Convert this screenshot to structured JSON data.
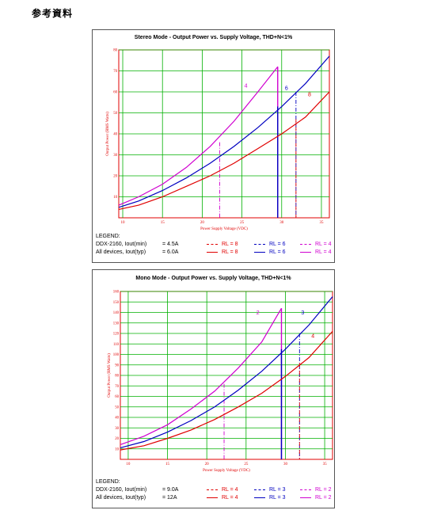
{
  "page": {
    "heading": "参考資料"
  },
  "charts": [
    {
      "title": "Stereo Mode - Output Power vs. Supply Voltage, THD+N<1%",
      "xlabel": "Power Supply Voltage (VDC)",
      "ylabel": "Output Power (RMS Watts)",
      "legend_title": "LEGEND:",
      "legend_rows": [
        {
          "label": "DDX-2160, Iout(min)",
          "value": "= 4.5A",
          "items": [
            "RL = 8",
            "RL = 6",
            "RL = 4"
          ]
        },
        {
          "label": "All devices, Iout(typ)",
          "value": "= 6.0A",
          "items": [
            "RL = 8",
            "RL = 6",
            "RL = 4"
          ]
        }
      ]
    },
    {
      "title": "Mono Mode - Output Power vs. Supply Voltage, THD+N<1%",
      "xlabel": "Power Supply Voltage (VDC)",
      "ylabel": "Output Power (RMS Watts)",
      "legend_title": "LEGEND:",
      "legend_rows": [
        {
          "label": "DDX-2160, Iout(min)",
          "value": "= 9.0A",
          "items": [
            "RL = 4",
            "RL = 3",
            "RL = 2"
          ]
        },
        {
          "label": "All devices, Iout(typ)",
          "value": "= 12A",
          "items": [
            "RL = 4",
            "RL = 3",
            "RL = 2"
          ]
        }
      ]
    }
  ],
  "chart_data": [
    {
      "type": "line",
      "title": "Stereo Mode - Output Power vs. Supply Voltage, THD+N<1%",
      "xlabel": "Power Supply Voltage (VDC)",
      "ylabel": "Output Power (RMS Watts)",
      "xlim": [
        9.5,
        36
      ],
      "ylim": [
        0,
        80
      ],
      "xticks": [
        10,
        15,
        20,
        25,
        30,
        35
      ],
      "yticks": [
        10,
        20,
        30,
        40,
        50,
        60,
        70,
        80
      ],
      "grid": true,
      "series": [
        {
          "name": "4",
          "color": "#d000d0",
          "x": [
            9.5,
            12,
            15,
            18,
            21,
            24,
            27,
            29.5
          ],
          "y": [
            6,
            10,
            16,
            24,
            34,
            46,
            60,
            72
          ]
        },
        {
          "name": "6",
          "color": "#0000c0",
          "x": [
            9.5,
            12,
            15,
            18,
            21,
            24,
            27,
            30,
            33,
            36
          ],
          "y": [
            5,
            8,
            13,
            19,
            26,
            34,
            43,
            53,
            64,
            77
          ]
        },
        {
          "name": "8",
          "color": "#e00000",
          "x": [
            9.5,
            12,
            15,
            18,
            21,
            24,
            27,
            30,
            33,
            36
          ],
          "y": [
            4,
            6,
            10,
            15,
            20,
            26,
            33,
            40,
            48,
            60
          ]
        }
      ],
      "limits": [
        {
          "style": "dashdot",
          "color": "#d000d0",
          "x": 22.2,
          "ytop": 36
        },
        {
          "style": "solid",
          "color": "#d000d0",
          "x": 29.5,
          "ytop": 72
        },
        {
          "style": "dashdot",
          "color": "#0000c0",
          "x": 31.8,
          "ytop": 60
        },
        {
          "style": "solid",
          "color": "#0000c0",
          "x": 29.5,
          "ytop": 53
        },
        {
          "style": "dashdot",
          "color": "#e00000",
          "x": 31.8,
          "ytop": 47
        }
      ],
      "annotations": [
        {
          "text": "4",
          "color": "#d000d0",
          "x": 25.5,
          "y": 62
        },
        {
          "text": "6",
          "color": "#0000c0",
          "x": 30.6,
          "y": 61
        },
        {
          "text": "8",
          "color": "#e00000",
          "x": 33.5,
          "y": 58
        }
      ]
    },
    {
      "type": "line",
      "title": "Mono Mode - Output Power vs. Supply Voltage, THD+N<1%",
      "xlabel": "Power Supply Voltage (VDC)",
      "ylabel": "Output Power (RMS Watts)",
      "xlim": [
        9,
        36
      ],
      "ylim": [
        0,
        160
      ],
      "xticks": [
        10,
        15,
        20,
        25,
        30,
        35
      ],
      "yticks": [
        10,
        20,
        30,
        40,
        50,
        60,
        70,
        80,
        90,
        100,
        110,
        120,
        130,
        140,
        150,
        160
      ],
      "grid": true,
      "series": [
        {
          "name": "2",
          "color": "#d000d0",
          "x": [
            9,
            12,
            15,
            18,
            21,
            24,
            27,
            29.5
          ],
          "y": [
            14,
            22,
            33,
            48,
            65,
            87,
            112,
            144
          ]
        },
        {
          "name": "3",
          "color": "#0000c0",
          "x": [
            9,
            12,
            15,
            18,
            21,
            24,
            27,
            30,
            33,
            36
          ],
          "y": [
            11,
            17,
            26,
            37,
            50,
            66,
            84,
            105,
            128,
            155
          ]
        },
        {
          "name": "4",
          "color": "#e00000",
          "x": [
            9,
            12,
            15,
            18,
            21,
            24,
            27,
            30,
            33,
            36
          ],
          "y": [
            9,
            13,
            20,
            28,
            38,
            50,
            63,
            79,
            97,
            122
          ]
        }
      ],
      "limits": [
        {
          "style": "dashdot",
          "color": "#d000d0",
          "x": 22.2,
          "ytop": 72
        },
        {
          "style": "solid",
          "color": "#d000d0",
          "x": 29.5,
          "ytop": 144
        },
        {
          "style": "dashdot",
          "color": "#0000c0",
          "x": 31.8,
          "ytop": 120
        },
        {
          "style": "solid",
          "color": "#0000c0",
          "x": 29.5,
          "ytop": 105
        },
        {
          "style": "dashdot",
          "color": "#e00000",
          "x": 31.8,
          "ytop": 92
        }
      ],
      "annotations": [
        {
          "text": "2",
          "color": "#d000d0",
          "x": 26.5,
          "y": 138
        },
        {
          "text": "3",
          "color": "#0000c0",
          "x": 32.2,
          "y": 138
        },
        {
          "text": "4",
          "color": "#e00000",
          "x": 33.5,
          "y": 116
        }
      ]
    }
  ]
}
